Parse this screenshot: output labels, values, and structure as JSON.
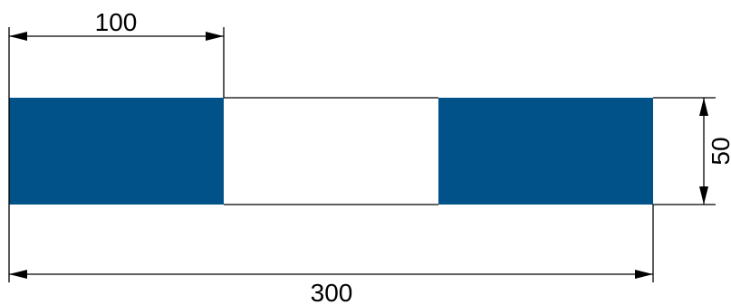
{
  "dimensions": {
    "top_width": "100",
    "bottom_width": "300",
    "height": "50"
  },
  "colors": {
    "fill": "#005288",
    "line": "#000000",
    "background": "#ffffff"
  }
}
